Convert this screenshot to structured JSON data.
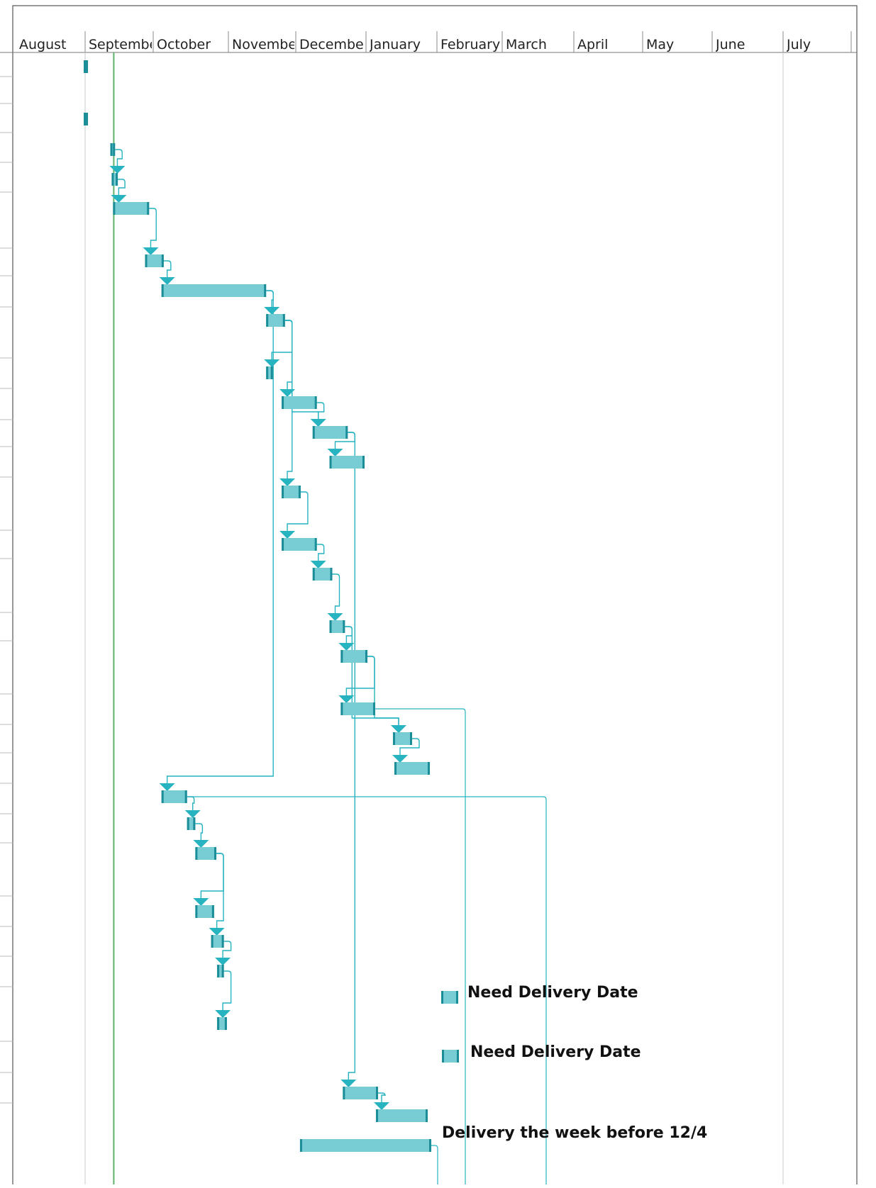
{
  "chart_data": {
    "type": "gantt",
    "timescale": {
      "months": [
        "August",
        "Septembe",
        "October",
        "Novembe",
        "Decembe",
        "January",
        "February",
        "March",
        "April",
        "May",
        "June",
        "July"
      ],
      "full_month_names": [
        "August",
        "September",
        "October",
        "November",
        "December",
        "January",
        "February",
        "March",
        "April",
        "May",
        "June",
        "July"
      ]
    },
    "today_marker": {
      "month_index": 1.4
    },
    "tasks": [
      {
        "id": 1,
        "start": 0.98,
        "end": 1.03
      },
      {
        "id": 2,
        "start": 0.98,
        "end": 1.03
      },
      {
        "id": 3,
        "start": 1.37,
        "end": 1.44,
        "pred": []
      },
      {
        "id": 4,
        "start": 1.39,
        "end": 1.48,
        "pred": [
          3
        ]
      },
      {
        "id": 5,
        "start": 1.41,
        "end": 1.94,
        "pred": [
          4
        ]
      },
      {
        "id": 6,
        "start": 1.88,
        "end": 2.14,
        "pred": [
          5
        ]
      },
      {
        "id": 7,
        "start": 2.11,
        "end": 3.56,
        "pred": [
          6
        ]
      },
      {
        "id": 8,
        "start": 3.56,
        "end": 3.84,
        "pred": [
          7
        ]
      },
      {
        "id": 9,
        "start": 3.56,
        "end": 3.66,
        "pred": [
          8
        ]
      },
      {
        "id": 10,
        "start": 3.79,
        "end": 4.3,
        "pred": [
          8
        ]
      },
      {
        "id": 11,
        "start": 4.24,
        "end": 4.74,
        "pred": [
          10,
          8
        ]
      },
      {
        "id": 12,
        "start": 4.48,
        "end": 4.98,
        "pred": [
          11
        ]
      },
      {
        "id": 13,
        "start": 3.79,
        "end": 4.07,
        "pred": [
          8
        ]
      },
      {
        "id": 14,
        "start": 3.79,
        "end": 4.3,
        "pred": [
          13
        ]
      },
      {
        "id": 15,
        "start": 4.24,
        "end": 4.52,
        "pred": [
          14
        ]
      },
      {
        "id": 16,
        "start": 4.48,
        "end": 4.7,
        "pred": [
          15
        ]
      },
      {
        "id": 17,
        "start": 4.64,
        "end": 5.02,
        "pred": [
          16
        ]
      },
      {
        "id": 18,
        "start": 4.64,
        "end": 5.13,
        "pred": [
          17
        ]
      },
      {
        "id": 19,
        "start": 5.38,
        "end": 5.65,
        "pred": [
          17,
          16
        ]
      },
      {
        "id": 20,
        "start": 5.4,
        "end": 5.9,
        "pred": [
          19
        ]
      },
      {
        "id": 21,
        "start": 2.11,
        "end": 2.45,
        "pred": [
          7
        ]
      },
      {
        "id": 22,
        "start": 2.45,
        "end": 2.56,
        "pred": [
          21
        ]
      },
      {
        "id": 23,
        "start": 2.56,
        "end": 2.84,
        "pred": [
          22
        ]
      },
      {
        "id": 24,
        "start": 2.56,
        "end": 2.81,
        "pred": [
          23
        ]
      },
      {
        "id": 25,
        "start": 2.77,
        "end": 2.94,
        "pred": [
          23
        ]
      },
      {
        "id": 26,
        "start": 2.85,
        "end": 2.94,
        "pred": [
          25
        ]
      },
      {
        "id": 27,
        "start": 2.85,
        "end": 2.98,
        "pred": [
          26
        ]
      },
      {
        "id": 28,
        "start": 4.67,
        "end": 5.17,
        "pred": [
          11
        ]
      },
      {
        "id": 29,
        "start": 5.14,
        "end": 5.87,
        "pred": [
          28
        ]
      },
      {
        "id": 30,
        "start": 4.06,
        "end": 5.92
      }
    ],
    "annotations": [
      {
        "text": "Need Delivery Date",
        "task_marker": "milestone-bar"
      },
      {
        "text": "Need Delivery Date",
        "task_marker": "milestone-bar"
      },
      {
        "text": "Delivery the week before 12/4"
      }
    ],
    "colors": {
      "bar_fill": "#78CDD5",
      "bar_cap": "#1A8D98",
      "link": "#27B3C0",
      "today": "#5FB46B",
      "grid": "#C8C8C8"
    }
  }
}
